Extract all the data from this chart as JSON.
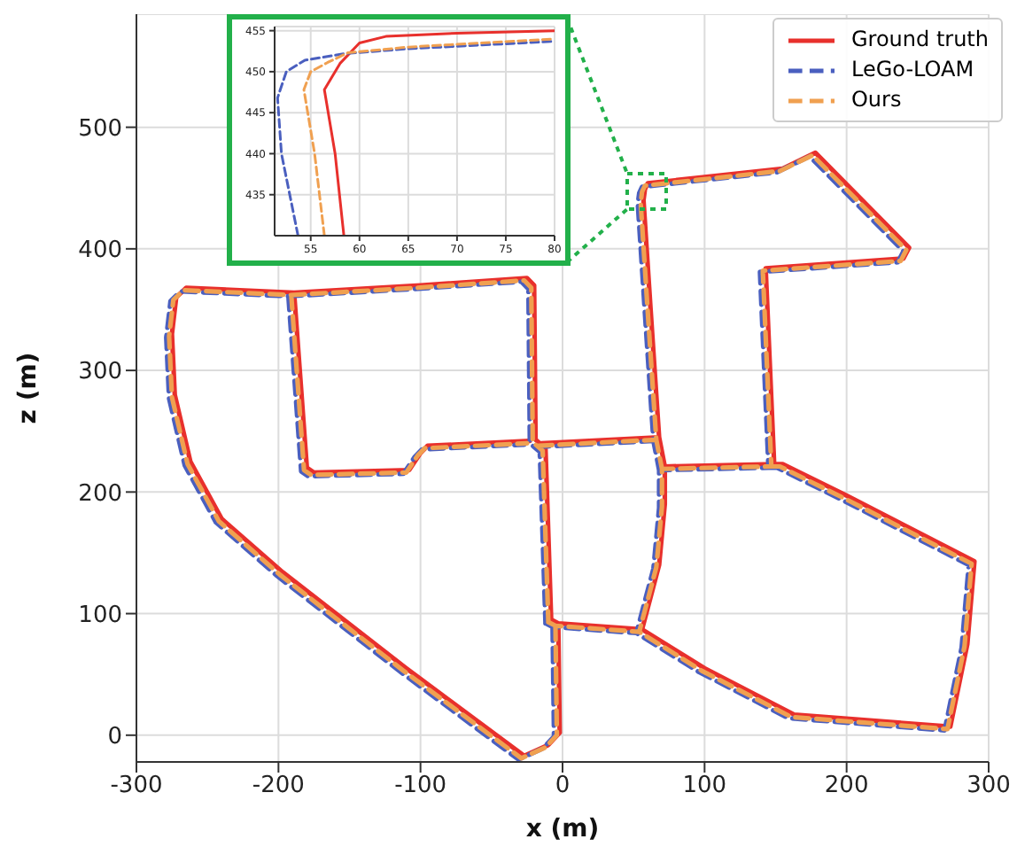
{
  "chart_data": [
    {
      "type": "line",
      "xlabel": "x (m)",
      "ylabel": "z (m)",
      "xlim": [
        -300,
        300
      ],
      "ylim": [
        -22,
        593
      ],
      "xticks": [
        -300,
        -200,
        -100,
        0,
        100,
        200,
        300
      ],
      "yticks": [
        0,
        100,
        200,
        300,
        400,
        500
      ],
      "grid": true,
      "legend": "top right",
      "marker": "none",
      "series": [
        {
          "name": "Ground truth",
          "color": "#e8302c",
          "line_style": "solid",
          "x": [
            -189,
            -180,
            -175,
            -108,
            -100,
            -95,
            -23,
            null,
            -15,
            68,
            null,
            -8,
            -3,
            56,
            68,
            72,
            72,
            68,
            62,
            57,
            58,
            60,
            100,
            155,
            178,
            244,
            240,
            143,
            149,
            72,
            null,
            149,
            155,
            200,
            290,
            285,
            273,
            163,
            100,
            56,
            null,
            -3,
            -2,
            -10,
            -27,
            -110,
            -197,
            -240,
            -262,
            -273,
            -275,
            -272,
            -265,
            -189,
            -100,
            -25,
            -20,
            -19,
            -12,
            -8
          ],
          "values": [
            364,
            220,
            216,
            218,
            232,
            238,
            242,
            null,
            240,
            245,
            null,
            95,
            92,
            87,
            140,
            190,
            221,
            245,
            350,
            440,
            449,
            454,
            459,
            466,
            479,
            401,
            392,
            384,
            223,
            221,
            null,
            223,
            223,
            197,
            143,
            75,
            7,
            17,
            55,
            87,
            null,
            92,
            2,
            -8,
            -17,
            55,
            134,
            178,
            225,
            280,
            330,
            360,
            368,
            364,
            370,
            376,
            370,
            243,
            236,
            95
          ]
        },
        {
          "name": "LeGo-LOAM",
          "color": "#4a5fbf",
          "line_style": "dashed",
          "x": [
            -193,
            -184,
            -179,
            -112,
            -104,
            -99,
            -27,
            null,
            -19,
            64,
            null,
            -12,
            -7,
            52,
            64,
            68,
            68,
            64,
            58,
            53,
            54,
            56,
            96,
            151,
            174,
            240,
            236,
            139,
            145,
            68,
            null,
            145,
            151,
            196,
            286,
            281,
            269,
            159,
            96,
            52,
            null,
            -7,
            -6,
            -14,
            -31,
            -114,
            -201,
            -244,
            -266,
            -277,
            -279,
            -276,
            -269,
            -193,
            -104,
            -29,
            -24,
            -23,
            -16,
            -12
          ],
          "values": [
            361,
            217,
            213,
            215,
            229,
            235,
            239,
            null,
            237,
            242,
            null,
            92,
            89,
            84,
            137,
            187,
            218,
            242,
            347,
            437,
            446,
            451,
            456,
            463,
            476,
            398,
            389,
            381,
            220,
            218,
            null,
            220,
            220,
            194,
            140,
            72,
            4,
            14,
            52,
            84,
            null,
            89,
            -1,
            -11,
            -20,
            52,
            131,
            175,
            222,
            277,
            327,
            357,
            365,
            361,
            367,
            373,
            367,
            240,
            233,
            92
          ]
        },
        {
          "name": "Ours",
          "color": "#f0a050",
          "line_style": "dashed",
          "x": [
            -191,
            -182,
            -177,
            -110,
            -102,
            -97,
            -25,
            null,
            -17,
            66,
            null,
            -10,
            -5,
            54,
            66,
            70,
            70,
            66,
            60,
            55,
            56,
            58,
            98,
            153,
            176,
            242,
            238,
            141,
            147,
            70,
            null,
            147,
            153,
            198,
            288,
            283,
            271,
            161,
            98,
            54,
            null,
            -5,
            -4,
            -12,
            -29,
            -112,
            -199,
            -242,
            -264,
            -275,
            -277,
            -274,
            -267,
            -191,
            -102,
            -27,
            -22,
            -21,
            -14,
            -10
          ],
          "values": [
            362,
            218,
            214,
            216,
            230,
            236,
            240,
            null,
            238,
            243,
            null,
            93,
            90,
            85,
            138,
            188,
            219,
            243,
            348,
            438,
            447,
            452,
            457,
            464,
            477,
            399,
            390,
            382,
            221,
            219,
            null,
            221,
            221,
            195,
            141,
            73,
            5,
            15,
            53,
            85,
            null,
            90,
            0,
            -10,
            -19,
            53,
            132,
            176,
            223,
            278,
            328,
            358,
            366,
            362,
            368,
            374,
            368,
            241,
            234,
            93
          ]
        }
      ]
    },
    {
      "type": "line",
      "xlim": [
        51.3,
        80
      ],
      "ylim": [
        430,
        455.5
      ],
      "xticks": [
        55,
        60,
        65,
        70,
        75,
        80
      ],
      "yticks": [
        435,
        440,
        445,
        450,
        455
      ],
      "grid": true,
      "marker": "none",
      "series": [
        {
          "color": "#e8302c",
          "line_style": "solid",
          "x": [
            58.4,
            57.5,
            56.4,
            58,
            60,
            62.7,
            70,
            80
          ],
          "values": [
            430,
            440,
            447.8,
            451,
            453.5,
            454.3,
            454.7,
            455
          ]
        },
        {
          "color": "#4a5fbf",
          "line_style": "dashed",
          "x": [
            53.7,
            52,
            51.6,
            52.5,
            54.4,
            58.5,
            65,
            80
          ],
          "values": [
            430,
            440,
            446.8,
            450,
            451.4,
            452.2,
            452.8,
            453.7
          ]
        },
        {
          "color": "#f0a050",
          "line_style": "dashed",
          "x": [
            56.4,
            55.4,
            54.3,
            55,
            56.7,
            58.8,
            65,
            80
          ],
          "values": [
            430,
            440,
            447.8,
            450,
            451.1,
            452.3,
            453,
            454
          ]
        }
      ]
    }
  ]
}
